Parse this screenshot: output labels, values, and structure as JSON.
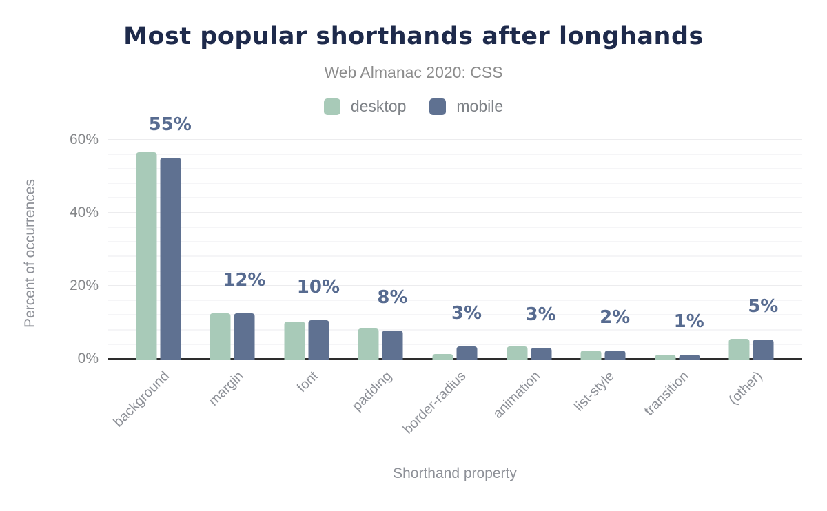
{
  "header": {
    "title": "Most popular shorthands after longhands",
    "subtitle": "Web Almanac 2020: CSS"
  },
  "colors": {
    "title": "#1e2a4b",
    "desktop": "#a8cab8",
    "mobile": "#5f7191",
    "data_label": "#576b90",
    "axis_line": "#2d2d2d",
    "muted_text": "#8d9097"
  },
  "chart_data": {
    "type": "bar",
    "title": "Most popular shorthands after longhands",
    "subtitle": "Web Almanac 2020: CSS",
    "categories": [
      "background",
      "margin",
      "font",
      "padding",
      "border-radius",
      "animation",
      "list-style",
      "transition",
      "(other)"
    ],
    "series": [
      {
        "name": "desktop",
        "color": "#a8cab8",
        "values": [
          56.3,
          12.2,
          9.9,
          8.1,
          1.1,
          3.2,
          2.1,
          1.0,
          5.2
        ]
      },
      {
        "name": "mobile",
        "color": "#5f7191",
        "values": [
          54.8,
          12.2,
          10.3,
          7.6,
          3.2,
          2.9,
          2.0,
          1.0,
          5.1
        ]
      }
    ],
    "data_labels": [
      "55%",
      "12%",
      "10%",
      "8%",
      "3%",
      "3%",
      "2%",
      "1%",
      "5%"
    ],
    "xlabel": "Shorthand property",
    "ylabel": "Percent of occurrences",
    "ylim": [
      0,
      60
    ],
    "y_ticks": [
      {
        "value": 0,
        "label": "0%"
      },
      {
        "value": 20,
        "label": "20%"
      },
      {
        "value": 40,
        "label": "40%"
      },
      {
        "value": 60,
        "label": "60%"
      }
    ],
    "grid": {
      "major_step": 20,
      "minor_step": 4
    },
    "legend_position": "top"
  }
}
